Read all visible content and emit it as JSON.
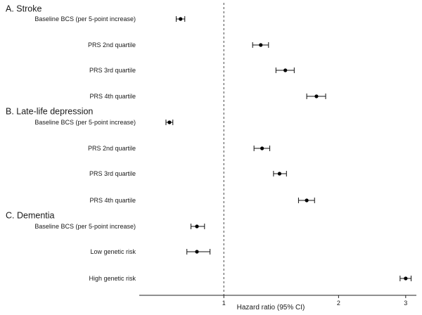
{
  "chart_data": {
    "type": "forest",
    "xlabel": "Hazard ratio (95% CI)",
    "x_scale": "log",
    "xlim": [
      0.6,
      3.2
    ],
    "x_ticks": [
      1,
      2,
      3
    ],
    "x_tick_labels": [
      "1",
      "2",
      "3"
    ],
    "reference_line": 1,
    "sections": [
      {
        "title": "A. Stroke",
        "rows": [
          {
            "label": "Baseline BCS (per 5-point increase)",
            "hr": 0.77,
            "lo": 0.75,
            "hi": 0.79
          },
          {
            "label": "PRS 2nd quartile",
            "hr": 1.25,
            "lo": 1.19,
            "hi": 1.31
          },
          {
            "label": "PRS 3rd quartile",
            "hr": 1.45,
            "lo": 1.37,
            "hi": 1.53
          },
          {
            "label": "PRS 4th quartile",
            "hr": 1.75,
            "lo": 1.65,
            "hi": 1.85
          }
        ]
      },
      {
        "title": "B. Late-life depression",
        "rows": [
          {
            "label": "Baseline BCS (per 5-point increase)",
            "hr": 0.72,
            "lo": 0.705,
            "hi": 0.735
          },
          {
            "label": "PRS 2nd quartile",
            "hr": 1.26,
            "lo": 1.2,
            "hi": 1.32
          },
          {
            "label": "PRS 3rd quartile",
            "hr": 1.4,
            "lo": 1.35,
            "hi": 1.46
          },
          {
            "label": "PRS 4th quartile",
            "hr": 1.65,
            "lo": 1.57,
            "hi": 1.73
          }
        ]
      },
      {
        "title": "C. Dementia",
        "rows": [
          {
            "label": "Baseline BCS (per 5-point increase)",
            "hr": 0.85,
            "lo": 0.82,
            "hi": 0.89
          },
          {
            "label": "Low genetic risk",
            "hr": 0.85,
            "lo": 0.8,
            "hi": 0.92
          },
          {
            "label": "High genetic risk",
            "hr": 3.0,
            "lo": 2.9,
            "hi": 3.1
          }
        ]
      }
    ]
  }
}
